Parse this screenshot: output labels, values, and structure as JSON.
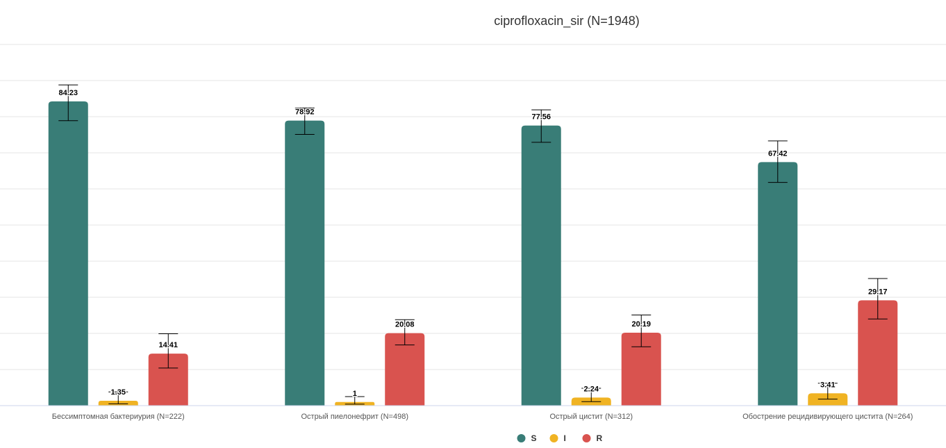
{
  "chart_data": {
    "type": "bar",
    "title": "ciprofloxacin_sir (N=1948)",
    "xlabel": "",
    "ylabel": "",
    "ylim": [
      0,
      100
    ],
    "grid": true,
    "legend_position": "bottom-center",
    "categories": [
      "Бессимптомная бактериурия (N=222)",
      "Острый пиелонефрит (N=498)",
      "Острый цистит (N=312)",
      "Обострение рецидивирующего цистита (N=264)"
    ],
    "series": [
      {
        "name": "S",
        "color": "#397d77",
        "values": [
          84.23,
          78.92,
          77.56,
          67.42
        ],
        "value_labels": [
          "84.23",
          "78.92",
          "77.56",
          "67.42"
        ],
        "error_low": [
          78.9,
          75.1,
          72.9,
          61.8
        ],
        "error_high": [
          88.8,
          82.4,
          81.9,
          73.3
        ]
      },
      {
        "name": "I",
        "color": "#f0b323",
        "values": [
          1.35,
          1,
          2.24,
          3.41
        ],
        "value_labels": [
          "1.35",
          "1",
          "2.24",
          "3.41"
        ],
        "error_low": [
          0.5,
          0.4,
          1.1,
          1.8
        ],
        "error_high": [
          3.8,
          2.5,
          4.8,
          6.2
        ]
      },
      {
        "name": "R",
        "color": "#d9534f",
        "values": [
          14.41,
          20.08,
          20.19,
          29.17
        ],
        "value_labels": [
          "14.41",
          "20.08",
          "20.19",
          "29.17"
        ],
        "error_low": [
          10.4,
          16.8,
          16.3,
          24.0
        ],
        "error_high": [
          19.9,
          23.8,
          25.1,
          35.2
        ]
      }
    ]
  }
}
